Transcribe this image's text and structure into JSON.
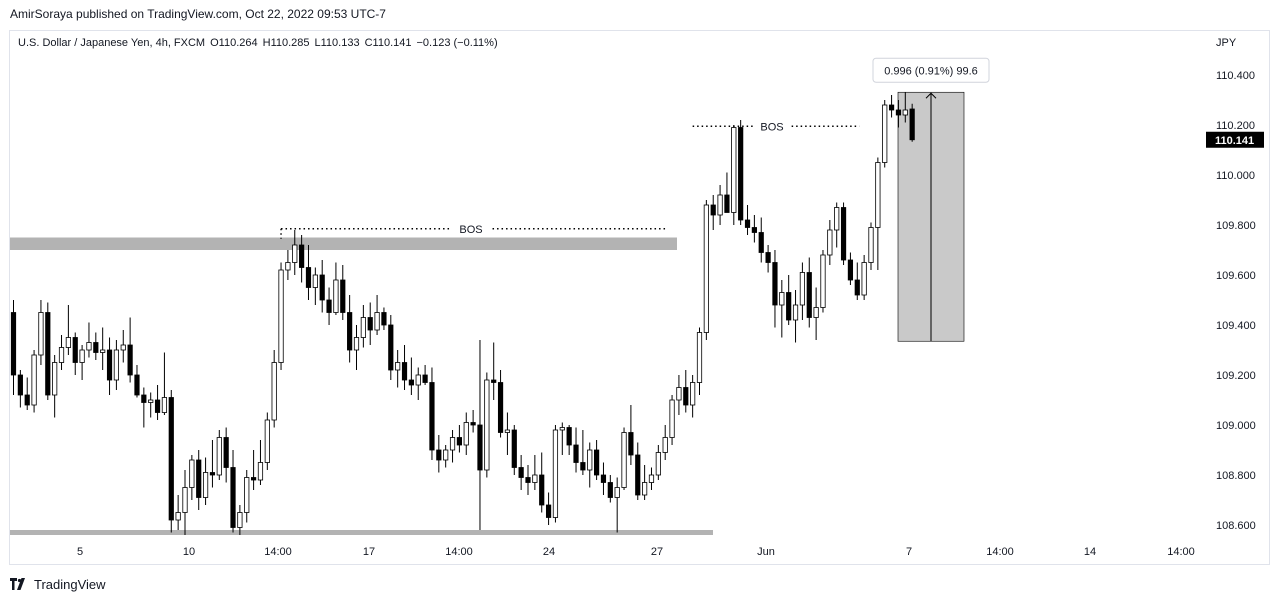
{
  "header": {
    "published_line": "AmirSoraya published on TradingView.com, Oct 22, 2022 09:53 UTC-7"
  },
  "footer": {
    "logo_icon": "tradingview-logo-icon",
    "brand": "TradingView"
  },
  "chart_data": {
    "type": "candlestick",
    "legend": {
      "symbol": "U.S. Dollar / Japanese Yen, 4h, FXCM",
      "open": "O110.264",
      "high": "H110.285",
      "low": "L110.133",
      "close": "C110.141",
      "change": "−0.123 (−0.11%)"
    },
    "currency": "JPY",
    "ylim": [
      108.54,
      110.6
    ],
    "y_ticks": [
      "110.400",
      "110.200",
      "110.000",
      "109.800",
      "109.600",
      "109.400",
      "109.200",
      "109.000",
      "108.800",
      "108.600"
    ],
    "x_ticks": [
      "5",
      "10",
      "14:00",
      "17",
      "14:00",
      "24",
      "27",
      "Jun",
      "7",
      "14:00",
      "14",
      "14:00"
    ],
    "last_price": "110.141",
    "colors": {
      "up": "#ffffff",
      "down": "#000000",
      "wick": "#000000",
      "zone": "#b3b3b3",
      "measure_fill": "#c9c9c9"
    },
    "candles": [
      [
        109.45,
        109.5,
        109.12,
        109.2
      ],
      [
        109.2,
        109.22,
        109.07,
        109.12
      ],
      [
        109.12,
        109.19,
        109.06,
        109.08
      ],
      [
        109.08,
        109.3,
        109.05,
        109.28
      ],
      [
        109.28,
        109.5,
        109.24,
        109.45
      ],
      [
        109.45,
        109.49,
        109.1,
        109.12
      ],
      [
        109.12,
        109.28,
        109.03,
        109.25
      ],
      [
        109.25,
        109.36,
        109.22,
        109.31
      ],
      [
        109.31,
        109.48,
        109.28,
        109.35
      ],
      [
        109.35,
        109.37,
        109.2,
        109.25
      ],
      [
        109.25,
        109.32,
        109.18,
        109.3
      ],
      [
        109.3,
        109.41,
        109.27,
        109.33
      ],
      [
        109.33,
        109.37,
        109.26,
        109.29
      ],
      [
        109.29,
        109.39,
        109.22,
        109.3
      ],
      [
        109.3,
        109.35,
        109.12,
        109.18
      ],
      [
        109.18,
        109.34,
        109.14,
        109.3
      ],
      [
        109.3,
        109.38,
        109.25,
        109.32
      ],
      [
        109.32,
        109.43,
        109.17,
        109.2
      ],
      [
        109.2,
        109.24,
        109.11,
        109.12
      ],
      [
        109.12,
        109.15,
        108.99,
        109.09
      ],
      [
        109.09,
        109.13,
        109.03,
        109.1
      ],
      [
        109.1,
        109.16,
        109.02,
        109.05
      ],
      [
        109.05,
        109.29,
        109.04,
        109.11
      ],
      [
        109.11,
        109.14,
        108.57,
        108.62
      ],
      [
        108.62,
        108.72,
        108.58,
        108.65
      ],
      [
        108.65,
        108.82,
        108.56,
        108.75
      ],
      [
        108.75,
        108.88,
        108.7,
        108.86
      ],
      [
        108.86,
        108.9,
        108.66,
        108.71
      ],
      [
        108.71,
        108.87,
        108.68,
        108.81
      ],
      [
        108.81,
        108.94,
        108.75,
        108.8
      ],
      [
        108.8,
        108.98,
        108.78,
        108.95
      ],
      [
        108.95,
        108.99,
        108.77,
        108.83
      ],
      [
        108.83,
        108.9,
        108.57,
        108.59
      ],
      [
        108.59,
        108.68,
        108.56,
        108.65
      ],
      [
        108.65,
        108.82,
        108.61,
        108.79
      ],
      [
        108.79,
        108.9,
        108.74,
        108.78
      ],
      [
        108.78,
        108.94,
        108.76,
        108.85
      ],
      [
        108.85,
        109.05,
        108.82,
        109.02
      ],
      [
        109.02,
        109.3,
        108.99,
        109.25
      ],
      [
        109.25,
        109.65,
        109.22,
        109.62
      ],
      [
        109.62,
        109.7,
        109.58,
        109.65
      ],
      [
        109.65,
        109.78,
        109.6,
        109.72
      ],
      [
        109.72,
        109.76,
        109.57,
        109.63
      ],
      [
        109.63,
        109.72,
        109.5,
        109.55
      ],
      [
        109.55,
        109.63,
        109.48,
        109.6
      ],
      [
        109.6,
        109.66,
        109.45,
        109.5
      ],
      [
        109.5,
        109.55,
        109.4,
        109.45
      ],
      [
        109.45,
        109.65,
        109.44,
        109.58
      ],
      [
        109.58,
        109.64,
        109.42,
        109.45
      ],
      [
        109.45,
        109.52,
        109.25,
        109.3
      ],
      [
        109.3,
        109.4,
        109.22,
        109.35
      ],
      [
        109.35,
        109.48,
        109.31,
        109.43
      ],
      [
        109.43,
        109.49,
        109.32,
        109.38
      ],
      [
        109.38,
        109.52,
        109.36,
        109.45
      ],
      [
        109.45,
        109.47,
        109.38,
        109.4
      ],
      [
        109.4,
        109.44,
        109.18,
        109.22
      ],
      [
        109.22,
        109.3,
        109.15,
        109.25
      ],
      [
        109.25,
        109.32,
        109.14,
        109.18
      ],
      [
        109.18,
        109.27,
        109.12,
        109.16
      ],
      [
        109.16,
        109.23,
        109.1,
        109.2
      ],
      [
        109.2,
        109.24,
        109.16,
        109.17
      ],
      [
        109.17,
        109.23,
        108.86,
        108.9
      ],
      [
        108.9,
        108.96,
        108.81,
        108.86
      ],
      [
        108.86,
        108.92,
        108.83,
        108.9
      ],
      [
        108.9,
        108.98,
        108.85,
        108.95
      ],
      [
        108.95,
        109.0,
        108.89,
        108.92
      ],
      [
        108.92,
        109.05,
        108.88,
        109.01
      ],
      [
        109.01,
        109.06,
        108.97,
        109.0
      ],
      [
        109.0,
        109.34,
        108.58,
        108.82
      ],
      [
        108.82,
        109.21,
        108.79,
        109.18
      ],
      [
        109.18,
        109.33,
        109.1,
        109.17
      ],
      [
        109.17,
        109.22,
        108.95,
        108.97
      ],
      [
        108.97,
        109.05,
        108.88,
        108.98
      ],
      [
        108.98,
        109.0,
        108.8,
        108.83
      ],
      [
        108.83,
        108.88,
        108.74,
        108.79
      ],
      [
        108.79,
        108.84,
        108.72,
        108.77
      ],
      [
        108.77,
        108.88,
        108.74,
        108.8
      ],
      [
        108.8,
        108.89,
        108.65,
        108.68
      ],
      [
        108.68,
        108.73,
        108.6,
        108.63
      ],
      [
        108.63,
        109.0,
        108.61,
        108.98
      ],
      [
        108.98,
        109.01,
        108.88,
        108.99
      ],
      [
        108.99,
        109.0,
        108.88,
        108.92
      ],
      [
        108.92,
        108.99,
        108.81,
        108.85
      ],
      [
        108.85,
        108.98,
        108.8,
        108.82
      ],
      [
        108.82,
        108.93,
        108.75,
        108.9
      ],
      [
        108.9,
        108.94,
        108.78,
        108.8
      ],
      [
        108.8,
        108.85,
        108.72,
        108.77
      ],
      [
        108.77,
        108.8,
        108.69,
        108.71
      ],
      [
        108.71,
        108.79,
        108.57,
        108.75
      ],
      [
        108.75,
        108.99,
        108.74,
        108.97
      ],
      [
        108.97,
        109.08,
        108.84,
        108.88
      ],
      [
        108.88,
        108.93,
        108.7,
        108.72
      ],
      [
        108.72,
        108.84,
        108.7,
        108.77
      ],
      [
        108.77,
        108.83,
        108.74,
        108.8
      ],
      [
        108.8,
        108.92,
        108.78,
        108.89
      ],
      [
        108.89,
        109.0,
        108.86,
        108.95
      ],
      [
        108.95,
        109.12,
        108.92,
        109.1
      ],
      [
        109.1,
        109.2,
        109.04,
        109.15
      ],
      [
        109.15,
        109.22,
        109.05,
        109.08
      ],
      [
        109.08,
        109.2,
        109.03,
        109.17
      ],
      [
        109.17,
        109.39,
        109.12,
        109.37
      ],
      [
        109.37,
        109.9,
        109.34,
        109.88
      ],
      [
        109.88,
        109.92,
        109.78,
        109.84
      ],
      [
        109.84,
        109.96,
        109.8,
        109.92
      ],
      [
        109.92,
        110.01,
        109.85,
        109.85
      ],
      [
        109.85,
        110.2,
        109.8,
        110.19
      ],
      [
        110.19,
        110.22,
        109.8,
        109.82
      ],
      [
        109.82,
        109.88,
        109.76,
        109.79
      ],
      [
        109.79,
        109.84,
        109.73,
        109.77
      ],
      [
        109.77,
        109.83,
        109.65,
        109.69
      ],
      [
        109.69,
        109.72,
        109.61,
        109.65
      ],
      [
        109.65,
        109.7,
        109.39,
        109.48
      ],
      [
        109.48,
        109.58,
        109.35,
        109.53
      ],
      [
        109.53,
        109.6,
        109.4,
        109.42
      ],
      [
        109.42,
        109.54,
        109.33,
        109.48
      ],
      [
        109.48,
        109.65,
        109.42,
        109.61
      ],
      [
        109.61,
        109.67,
        109.39,
        109.43
      ],
      [
        109.43,
        109.55,
        109.34,
        109.47
      ],
      [
        109.47,
        109.7,
        109.45,
        109.68
      ],
      [
        109.68,
        109.82,
        109.64,
        109.78
      ],
      [
        109.78,
        109.89,
        109.71,
        109.87
      ],
      [
        109.87,
        109.89,
        109.64,
        109.66
      ],
      [
        109.66,
        109.69,
        109.56,
        109.58
      ],
      [
        109.58,
        109.65,
        109.5,
        109.52
      ],
      [
        109.52,
        109.68,
        109.5,
        109.65
      ],
      [
        109.65,
        109.81,
        109.62,
        109.79
      ],
      [
        109.79,
        110.07,
        109.62,
        110.05
      ],
      [
        110.05,
        110.3,
        110.03,
        110.28
      ],
      [
        110.28,
        110.32,
        110.23,
        110.26
      ],
      [
        110.26,
        110.3,
        110.19,
        110.24
      ],
      [
        110.24,
        110.33,
        110.21,
        110.26
      ],
      [
        110.264,
        110.285,
        110.133,
        110.141
      ]
    ],
    "supply_zone": {
      "from": 109.7,
      "to": 109.75
    },
    "demand_zone": {
      "from": 108.56,
      "to": 108.58
    },
    "bos_lines": [
      {
        "label": "BOS",
        "price": 109.785
      },
      {
        "label": "BOS",
        "price": 110.195
      }
    ],
    "measure": {
      "from": 109.335,
      "to": 110.331,
      "label": "0.996 (0.91%) 99.6"
    }
  }
}
